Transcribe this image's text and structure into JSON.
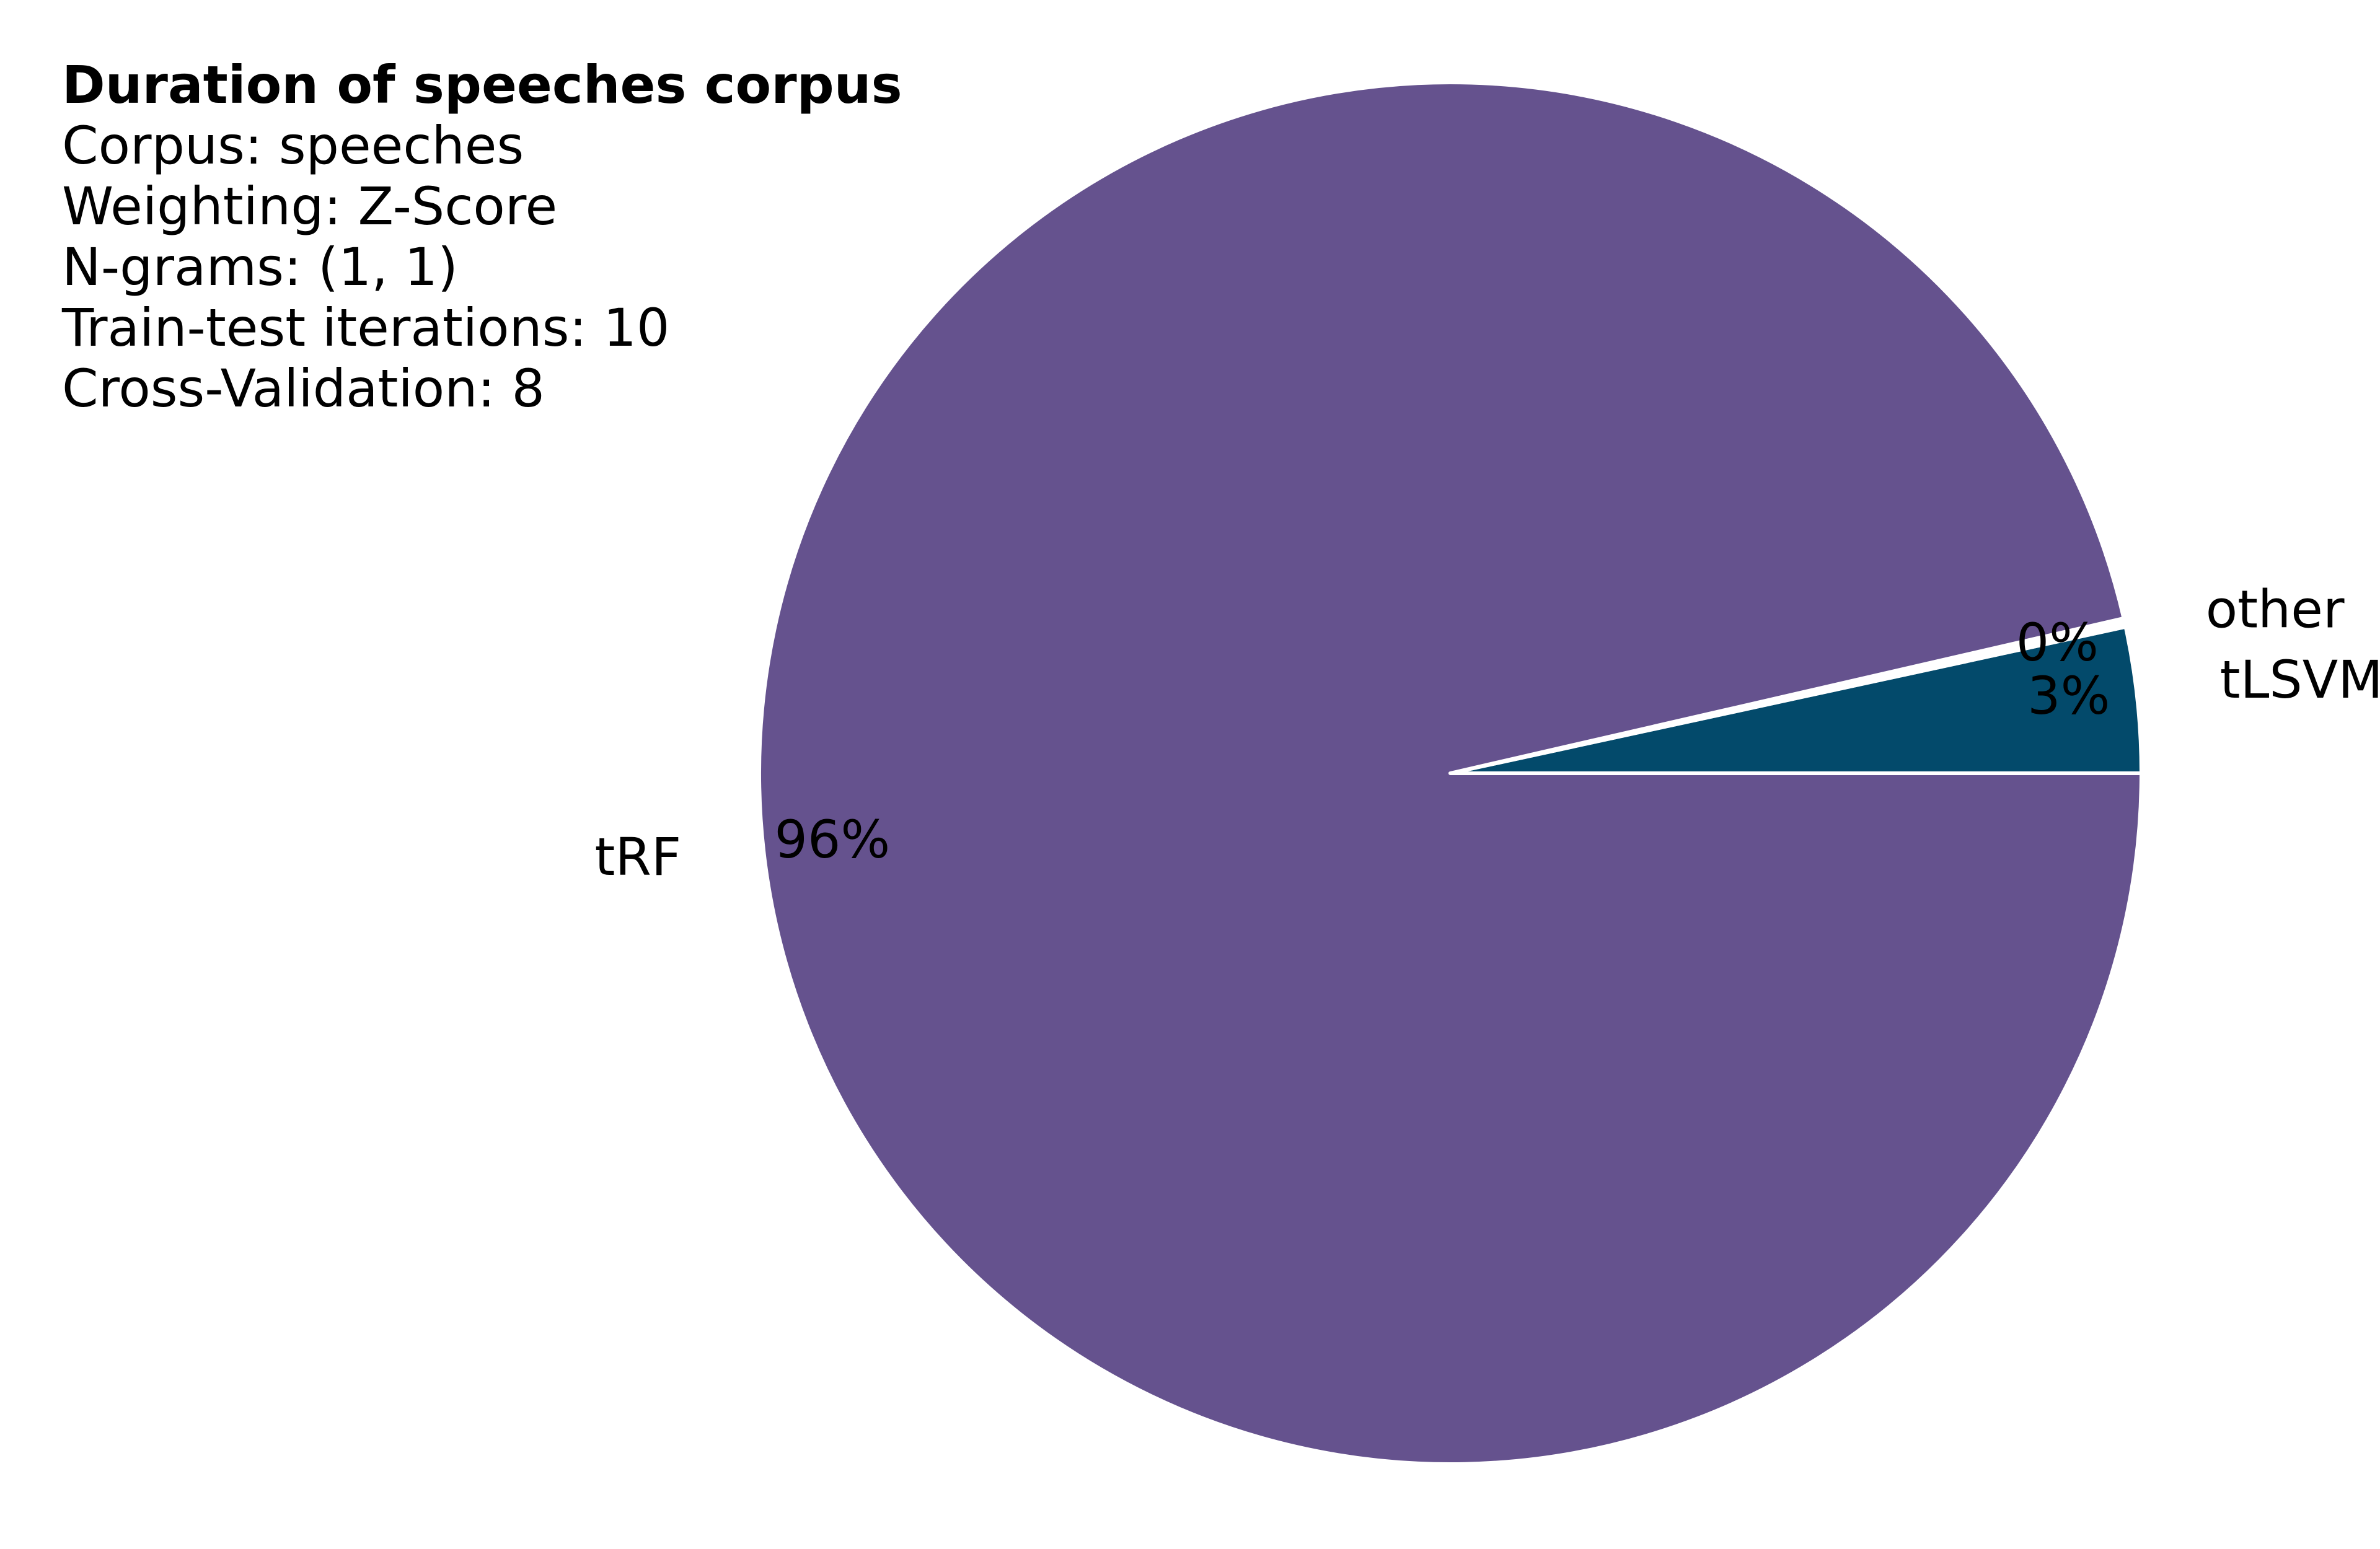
{
  "chart_data": {
    "type": "pie",
    "title": "Duration of speeches corpus",
    "info_lines": [
      "Corpus: speeches",
      "Weighting: Z-Score",
      "N-grams: (1, 1)",
      "Train-test iterations: 10",
      "Cross-Validation: 8"
    ],
    "slices": [
      {
        "label": "tLSVM",
        "value": 3.4,
        "percent_label": "3%",
        "color": "#034A6B"
      },
      {
        "label": "other",
        "value": 0.2,
        "percent_label": "0%",
        "color": "#FFFFFF"
      },
      {
        "label": "tRF",
        "value": 96.4,
        "percent_label": "96%",
        "color": "#65528E"
      }
    ],
    "start_angle_deg": 0,
    "direction": "counterclockwise",
    "separator_color": "#FFFFFF"
  }
}
